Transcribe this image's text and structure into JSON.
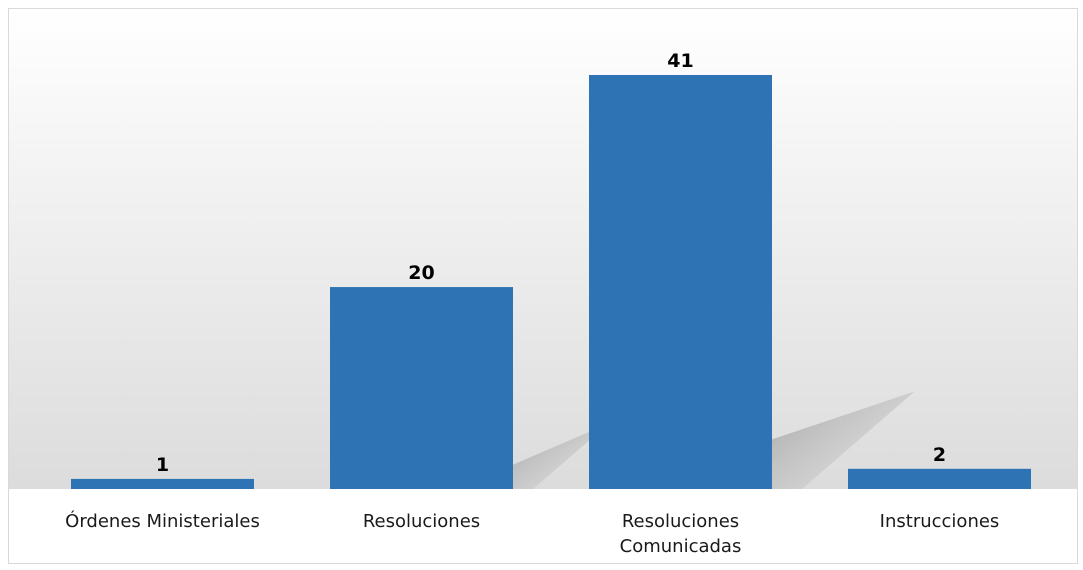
{
  "chart_data": {
    "type": "bar",
    "categories": [
      "Órdenes Ministeriales",
      "Resoluciones",
      "Resoluciones\nComunicadas",
      "Instrucciones"
    ],
    "values": [
      1,
      20,
      41,
      2
    ],
    "title": "",
    "xlabel": "",
    "ylabel": "",
    "ylim": [
      0,
      41
    ],
    "grid": false,
    "legend": "none",
    "bar_color": "#2E74B5",
    "background_gradient": [
      "#ffffff",
      "#dcdcdc"
    ]
  }
}
